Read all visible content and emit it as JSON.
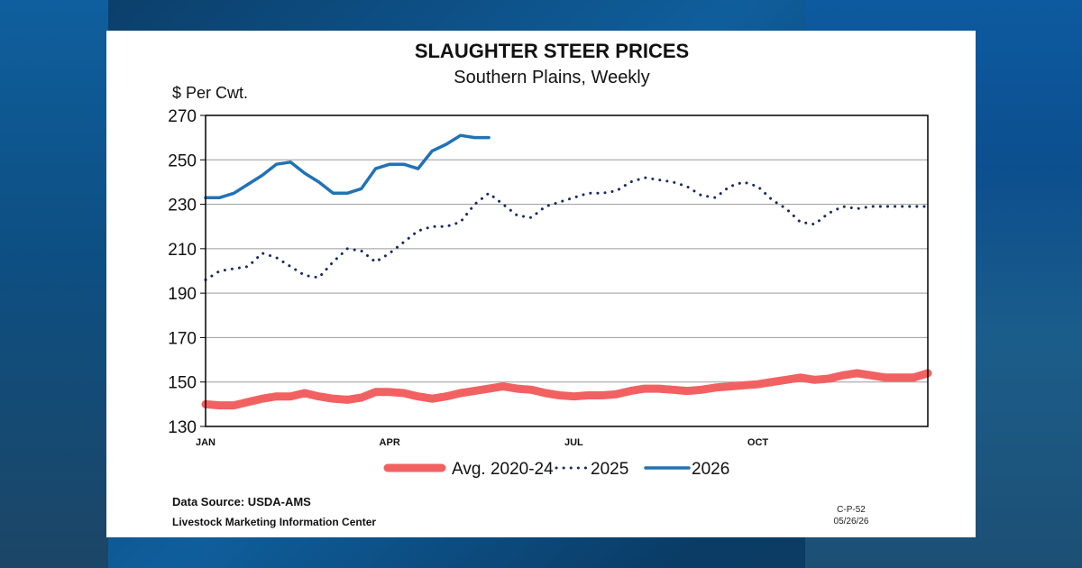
{
  "chart_data": {
    "type": "line",
    "title": "SLAUGHTER STEER PRICES",
    "subtitle": "Southern Plains, Weekly",
    "ylabel": "$ Per Cwt.",
    "ylim": [
      130,
      270
    ],
    "yticks": [
      130,
      150,
      170,
      190,
      210,
      230,
      250,
      270
    ],
    "xlim": [
      1,
      52
    ],
    "xticks": [
      {
        "label": "JAN",
        "week": 1
      },
      {
        "label": "APR",
        "week": 14
      },
      {
        "label": "JUL",
        "week": 27
      },
      {
        "label": "OCT",
        "week": 40
      }
    ],
    "grid": true,
    "legend_position": "bottom",
    "series": [
      {
        "name": "Avg. 2020-24",
        "color": "#f26161",
        "style": "thick",
        "x": [
          1,
          2,
          3,
          4,
          5,
          6,
          7,
          8,
          9,
          10,
          11,
          12,
          13,
          14,
          15,
          16,
          17,
          18,
          19,
          20,
          21,
          22,
          23,
          24,
          25,
          26,
          27,
          28,
          29,
          30,
          31,
          32,
          33,
          34,
          35,
          36,
          37,
          38,
          39,
          40,
          41,
          42,
          43,
          44,
          45,
          46,
          47,
          48,
          49,
          50,
          51,
          52
        ],
        "values": [
          140,
          139.5,
          139.5,
          141,
          142.5,
          143.5,
          143.5,
          145,
          143.5,
          142.5,
          142,
          143,
          145.5,
          145.5,
          145,
          143.5,
          142.5,
          143.5,
          145,
          146,
          147,
          148,
          147,
          146.5,
          145,
          144,
          143.5,
          144,
          144,
          144.5,
          146,
          147,
          147,
          146.5,
          146,
          146.5,
          147.5,
          148,
          148.5,
          149,
          150,
          151,
          152,
          151,
          151.5,
          153,
          154,
          153,
          152,
          152,
          152,
          154
        ]
      },
      {
        "name": "2025",
        "color": "#1a2a5e",
        "style": "dotted",
        "x": [
          1,
          2,
          3,
          4,
          5,
          6,
          7,
          8,
          9,
          10,
          11,
          12,
          13,
          14,
          15,
          16,
          17,
          18,
          19,
          20,
          21,
          22,
          23,
          24,
          25,
          26,
          27,
          28,
          29,
          30,
          31,
          32,
          33,
          34,
          35,
          36,
          37,
          38,
          39,
          40,
          41,
          42,
          43,
          44,
          45,
          46,
          47,
          48,
          49,
          50,
          51,
          52
        ],
        "values": [
          196,
          200,
          201,
          202,
          208,
          206,
          202,
          198,
          197,
          204,
          210,
          209,
          204,
          208,
          213,
          218,
          220,
          220,
          222,
          230,
          235,
          230,
          225,
          224,
          229,
          231,
          233,
          235,
          235,
          236,
          240,
          242,
          241,
          240,
          238,
          234,
          233,
          238,
          240,
          238,
          232,
          228,
          222,
          221,
          226,
          229,
          228,
          229,
          229,
          229,
          229,
          229
        ]
      },
      {
        "name": "2026",
        "color": "#2172b6",
        "style": "solid",
        "x": [
          1,
          2,
          3,
          4,
          5,
          6,
          7,
          8,
          9,
          10,
          11,
          12,
          13,
          14,
          15,
          16,
          17,
          18,
          19,
          20,
          21
        ],
        "values": [
          233,
          233,
          235,
          239,
          243,
          248,
          249,
          244,
          240,
          235,
          235,
          237,
          246,
          248,
          248,
          246,
          254,
          257,
          261,
          260,
          260
        ]
      }
    ]
  },
  "footer": {
    "source_label": "Data Source:  USDA-AMS",
    "org": "Livestock Marketing Information Center",
    "chart_code": "C-P-52",
    "date": "05/26/26"
  }
}
